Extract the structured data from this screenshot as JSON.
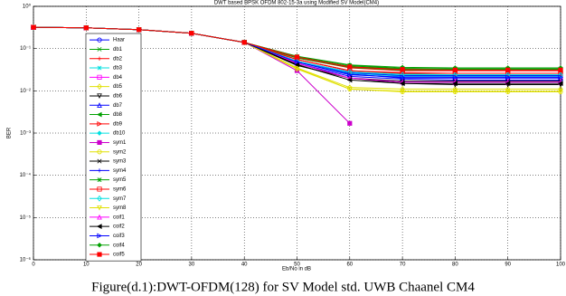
{
  "chart_data": {
    "type": "line",
    "title": "DWT based BPSK OFDM 802-15-3a using Modified SV Model(CM4)",
    "x_label": "Eb/No in dB",
    "y_label": "BER",
    "caption": "Figure(d.1):DWT-OFDM(128) for SV Model std. UWB Chaanel CM4",
    "log_y": true,
    "grid": true,
    "legend": "upper left",
    "xlim": [
      0,
      100
    ],
    "xticks": [
      0,
      10,
      20,
      30,
      40,
      50,
      60,
      70,
      80,
      90,
      100
    ],
    "ylim": [
      1e-06,
      1
    ],
    "yticks": [
      {
        "value": 1e-06,
        "label": "10⁻⁶"
      },
      {
        "value": 1e-05,
        "label": "10⁻⁵"
      },
      {
        "value": 0.0001,
        "label": "10⁻⁴"
      },
      {
        "value": 0.001,
        "label": "10⁻³"
      },
      {
        "value": 0.01,
        "label": "10⁻²"
      },
      {
        "value": 0.1,
        "label": "10⁻¹"
      },
      {
        "value": 1,
        "label": "10⁰"
      }
    ],
    "x": [
      0,
      10,
      20,
      30,
      40,
      50,
      60,
      70,
      80,
      90,
      100
    ],
    "series": [
      {
        "name": "Haar",
        "color": "#0000ff",
        "values": [
          0.32,
          0.31,
          0.28,
          0.23,
          0.14,
          0.045,
          0.022,
          0.019,
          0.018,
          0.018,
          0.018
        ]
      },
      {
        "name": "db1",
        "color": "#00a000",
        "values": [
          0.32,
          0.31,
          0.28,
          0.23,
          0.14,
          0.065,
          0.04,
          0.034,
          0.033,
          0.033,
          0.033
        ]
      },
      {
        "name": "db2",
        "color": "#ff0000",
        "values": [
          0.32,
          0.31,
          0.28,
          0.23,
          0.14,
          0.06,
          0.035,
          0.03,
          0.03,
          0.03,
          0.03
        ]
      },
      {
        "name": "db3",
        "color": "#00e0e0",
        "values": [
          0.32,
          0.31,
          0.28,
          0.23,
          0.14,
          0.055,
          0.03,
          0.025,
          0.024,
          0.024,
          0.024
        ]
      },
      {
        "name": "db4",
        "color": "#ff00ff",
        "values": [
          0.32,
          0.31,
          0.28,
          0.23,
          0.14,
          0.05,
          0.028,
          0.022,
          0.021,
          0.021,
          0.021
        ]
      },
      {
        "name": "db5",
        "color": "#e0e000",
        "values": [
          0.32,
          0.31,
          0.28,
          0.23,
          0.14,
          0.035,
          0.012,
          0.011,
          0.011,
          0.011,
          0.011
        ]
      },
      {
        "name": "db6",
        "color": "#000000",
        "values": [
          0.32,
          0.31,
          0.28,
          0.23,
          0.14,
          0.04,
          0.02,
          0.015,
          0.014,
          0.014,
          0.014
        ]
      },
      {
        "name": "db7",
        "color": "#0000ff",
        "values": [
          0.32,
          0.31,
          0.28,
          0.23,
          0.14,
          0.05,
          0.025,
          0.02,
          0.02,
          0.02,
          0.02
        ]
      },
      {
        "name": "db8",
        "color": "#00a000",
        "values": [
          0.32,
          0.31,
          0.28,
          0.23,
          0.14,
          0.06,
          0.036,
          0.031,
          0.031,
          0.031,
          0.031
        ]
      },
      {
        "name": "db9",
        "color": "#ff0000",
        "values": [
          0.32,
          0.31,
          0.28,
          0.23,
          0.14,
          0.055,
          0.03,
          0.026,
          0.026,
          0.026,
          0.026
        ]
      },
      {
        "name": "db10",
        "color": "#00e0e0",
        "values": [
          0.32,
          0.31,
          0.28,
          0.23,
          0.14,
          0.05,
          0.026,
          0.022,
          0.022,
          0.022,
          0.022
        ]
      },
      {
        "name": "sym1",
        "color": "#cc00cc",
        "values": [
          0.32,
          0.31,
          0.28,
          0.23,
          0.14,
          0.03,
          0.0017,
          null,
          null,
          null,
          null
        ]
      },
      {
        "name": "sym2",
        "color": "#e0e000",
        "values": [
          0.32,
          0.31,
          0.28,
          0.23,
          0.14,
          0.033,
          0.011,
          0.0095,
          0.0095,
          0.0095,
          0.0095
        ]
      },
      {
        "name": "sym3",
        "color": "#000000",
        "values": [
          0.32,
          0.31,
          0.28,
          0.23,
          0.14,
          0.045,
          0.02,
          0.017,
          0.017,
          0.017,
          0.017
        ]
      },
      {
        "name": "sym4",
        "color": "#0000ff",
        "values": [
          0.32,
          0.31,
          0.28,
          0.23,
          0.14,
          0.05,
          0.027,
          0.023,
          0.023,
          0.023,
          0.023
        ]
      },
      {
        "name": "sym5",
        "color": "#00a000",
        "values": [
          0.32,
          0.31,
          0.28,
          0.23,
          0.14,
          0.062,
          0.038,
          0.033,
          0.032,
          0.032,
          0.032
        ]
      },
      {
        "name": "sym6",
        "color": "#ff0000",
        "values": [
          0.32,
          0.31,
          0.28,
          0.23,
          0.14,
          0.055,
          0.03,
          0.027,
          0.026,
          0.026,
          0.026
        ]
      },
      {
        "name": "sym7",
        "color": "#00e0e0",
        "values": [
          0.32,
          0.31,
          0.28,
          0.23,
          0.14,
          0.05,
          0.028,
          0.024,
          0.024,
          0.024,
          0.024
        ]
      },
      {
        "name": "sym8",
        "color": "#e0e000",
        "values": [
          0.32,
          0.31,
          0.28,
          0.23,
          0.14,
          0.034,
          0.011,
          0.0098,
          0.0098,
          0.0098,
          0.0098
        ]
      },
      {
        "name": "coif1",
        "color": "#ff00ff",
        "values": [
          0.32,
          0.31,
          0.28,
          0.23,
          0.14,
          0.045,
          0.02,
          0.016,
          0.016,
          0.016,
          0.016
        ]
      },
      {
        "name": "coif2",
        "color": "#000000",
        "values": [
          0.32,
          0.31,
          0.28,
          0.23,
          0.14,
          0.042,
          0.018,
          0.015,
          0.015,
          0.015,
          0.015
        ]
      },
      {
        "name": "coif3",
        "color": "#0000ff",
        "values": [
          0.32,
          0.31,
          0.28,
          0.23,
          0.14,
          0.048,
          0.024,
          0.021,
          0.021,
          0.021,
          0.021
        ]
      },
      {
        "name": "coif4",
        "color": "#00a000",
        "values": [
          0.32,
          0.31,
          0.28,
          0.23,
          0.14,
          0.066,
          0.041,
          0.036,
          0.035,
          0.035,
          0.035
        ]
      },
      {
        "name": "coif5",
        "color": "#ff0000",
        "values": [
          0.32,
          0.31,
          0.28,
          0.23,
          0.14,
          0.063,
          0.037,
          0.032,
          0.031,
          0.031,
          0.031
        ]
      }
    ]
  }
}
